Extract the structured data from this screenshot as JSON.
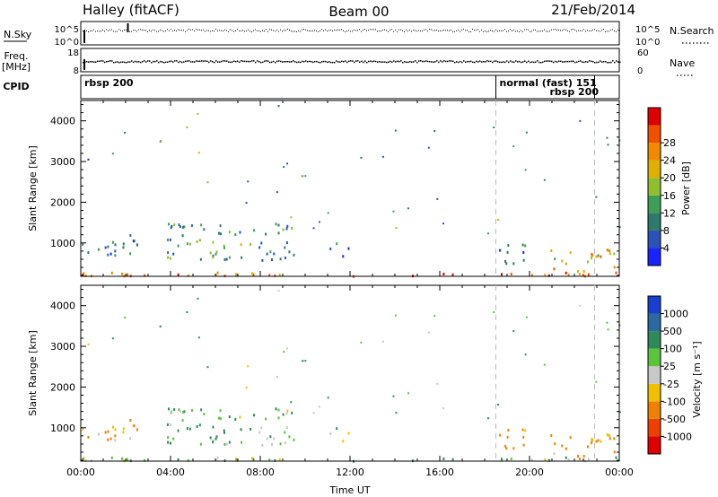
{
  "header": {
    "station": "Halley (fitACF)",
    "beam": "Beam 00",
    "date": "21/Feb/2014"
  },
  "info_panel": {
    "left_labels": {
      "nsky": "N.Sky",
      "freq": "Freq.",
      "freq_unit": "[MHz]",
      "cpid": "CPID"
    },
    "right_labels": {
      "nsearch": "N.Search",
      "nave": "Nave"
    },
    "nsky_ticks": [
      "10^5",
      "10^0"
    ],
    "nsearch_ticks": [
      "10^5",
      "10^0"
    ],
    "freq_ticks": [
      "18",
      "8"
    ],
    "nave_ticks": [
      "60",
      "0"
    ],
    "cpid_segments": [
      {
        "label": "rbsp 200",
        "start_hour": 0.0
      },
      {
        "label": "normal (fast) 151",
        "start_hour": 18.5
      },
      {
        "label": "rbsp 200",
        "start_hour": 22.9
      }
    ],
    "frequency_mhz": 12,
    "nave_typical": 25
  },
  "chart_data": [
    {
      "type": "heatmap",
      "name": "power",
      "ylabel": "Slant Range [km]",
      "xlabel": "",
      "x_range_hours": [
        0,
        24
      ],
      "y_range_km": [
        180,
        4500
      ],
      "y_ticks": [
        "1000",
        "2000",
        "3000",
        "4000"
      ],
      "colorbar": {
        "label": "Power [dB]",
        "ticks": [
          "4",
          "8",
          "12",
          "16",
          "20",
          "24",
          "28"
        ],
        "range": [
          0,
          30
        ],
        "colors": [
          "#1a22ff",
          "#2a52b8",
          "#2e7a6a",
          "#3f9e55",
          "#8fbf2e",
          "#e0b000",
          "#f08a00",
          "#f05000",
          "#e00000"
        ]
      },
      "scatter_regions": [
        {
          "t0": 0.0,
          "t1": 2.7,
          "r0": 700,
          "r1": 1300,
          "level": 8
        },
        {
          "t0": 3.8,
          "t1": 9.6,
          "r0": 600,
          "r1": 1500,
          "level": 10
        },
        {
          "t0": 10.5,
          "t1": 12.0,
          "r0": 700,
          "r1": 1100,
          "level": 6
        },
        {
          "t0": 18.5,
          "t1": 19.8,
          "r0": 500,
          "r1": 1000,
          "level": 5
        },
        {
          "t0": 20.8,
          "t1": 23.9,
          "r0": 250,
          "r1": 900,
          "level": 18
        },
        {
          "t0": 0.0,
          "t1": 24.0,
          "r0": 200,
          "r1": 300,
          "level": 22
        }
      ]
    },
    {
      "type": "heatmap",
      "name": "velocity",
      "ylabel": "Slant Range [km]",
      "xlabel": "Time UT",
      "x_range_hours": [
        0,
        24
      ],
      "x_ticks": [
        "00:00",
        "04:00",
        "08:00",
        "12:00",
        "16:00",
        "20:00",
        "00:00"
      ],
      "y_range_km": [
        180,
        4500
      ],
      "y_ticks": [
        "1000",
        "2000",
        "3000",
        "4000"
      ],
      "colorbar": {
        "label": "Velocity [m s⁻¹]",
        "ticks": [
          "1000",
          "500",
          "100",
          "25",
          "-25",
          "-100",
          "-500",
          "-1000"
        ],
        "colors": [
          "#1a3fcf",
          "#2a6aa0",
          "#2f8a5a",
          "#5ac43a",
          "#c8c8c8",
          "#f0c000",
          "#f08000",
          "#f04000",
          "#e00000"
        ]
      },
      "scatter_regions": [
        {
          "t0": 0.0,
          "t1": 2.7,
          "r0": 700,
          "r1": 1300,
          "level": -100
        },
        {
          "t0": 3.8,
          "t1": 9.6,
          "r0": 600,
          "r1": 1500,
          "level": 100
        },
        {
          "t0": 10.5,
          "t1": 12.0,
          "r0": 700,
          "r1": 1100,
          "level": 25
        },
        {
          "t0": 18.5,
          "t1": 19.8,
          "r0": 500,
          "r1": 1000,
          "level": -200
        },
        {
          "t0": 20.8,
          "t1": 23.9,
          "r0": 250,
          "r1": 900,
          "level": -150
        },
        {
          "t0": 0.0,
          "t1": 24.0,
          "r0": 200,
          "r1": 300,
          "level": 30
        }
      ]
    }
  ]
}
